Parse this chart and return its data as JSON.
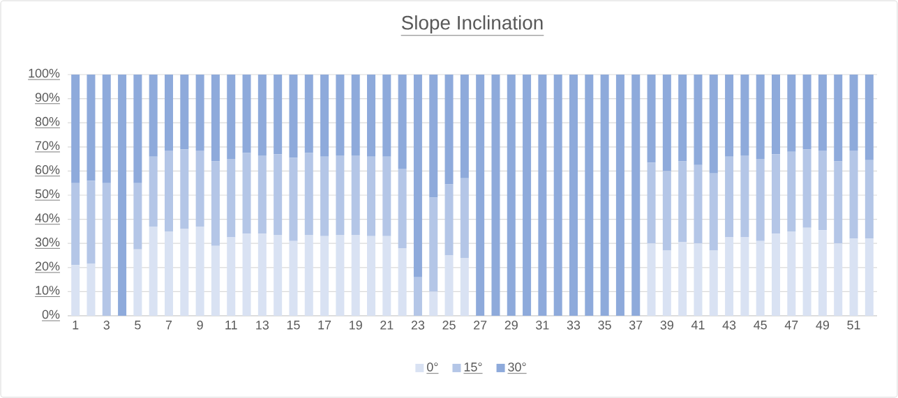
{
  "chart_data": {
    "type": "bar",
    "stacked": true,
    "title": "Slope Inclination",
    "categories": [
      "1",
      null,
      "3",
      null,
      "5",
      null,
      "7",
      null,
      "9",
      null,
      "11",
      null,
      "13",
      null,
      "15",
      null,
      "17",
      null,
      "19",
      null,
      "21",
      null,
      "23",
      null,
      "25",
      null,
      "27",
      null,
      "29",
      null,
      "31",
      null,
      "33",
      null,
      "35",
      null,
      "37",
      null,
      "39",
      null,
      "41",
      null,
      "43",
      null,
      "45",
      null,
      "47",
      null,
      "49",
      null,
      "51",
      null
    ],
    "series": [
      {
        "name": "0°",
        "color": "#d9e2f3",
        "values": [
          21,
          21.5,
          0,
          0,
          27.5,
          37,
          35,
          36,
          37,
          29,
          32.5,
          34,
          34,
          33.5,
          31,
          33.5,
          33,
          33.5,
          33.5,
          33,
          33,
          28,
          0,
          10,
          25,
          24,
          0,
          0,
          0,
          0,
          0,
          0,
          0,
          0,
          0,
          0,
          0,
          30,
          27,
          30.5,
          30,
          27,
          32.5,
          32.5,
          31,
          34,
          35,
          36.5,
          35.5,
          30,
          32,
          32
        ]
      },
      {
        "name": "15°",
        "color": "#b4c6e7",
        "values": [
          34,
          34.5,
          55,
          0,
          27.5,
          29,
          33.5,
          33,
          31.5,
          35,
          32.5,
          33.5,
          32.5,
          33.5,
          34.5,
          34,
          33,
          33,
          33,
          33,
          33,
          33,
          16,
          39,
          29.5,
          33,
          0,
          0,
          0,
          0,
          0,
          0,
          0,
          0,
          0,
          0,
          0,
          33.5,
          33,
          33.5,
          32.5,
          32,
          33.5,
          34,
          34,
          33,
          33,
          32.5,
          33,
          34,
          36.5,
          32.5
        ]
      },
      {
        "name": "30°",
        "color": "#8eaadb",
        "values": [
          45,
          44,
          45,
          100,
          45,
          34,
          31.5,
          31,
          31.5,
          36,
          35,
          32.5,
          33.5,
          33,
          34.5,
          32.5,
          34,
          33.5,
          33.5,
          34,
          34,
          39,
          84,
          51,
          45.5,
          43,
          100,
          100,
          100,
          100,
          100,
          100,
          100,
          100,
          100,
          100,
          100,
          36.5,
          40,
          36,
          37.5,
          41,
          34,
          33.5,
          35,
          33,
          32,
          31,
          31.5,
          36,
          31.5,
          35.5
        ]
      }
    ],
    "ylim": [
      0,
      100
    ],
    "yticks": [
      {
        "value": 0,
        "label": "0%"
      },
      {
        "value": 10,
        "label": "10%"
      },
      {
        "value": 20,
        "label": "20%"
      },
      {
        "value": 30,
        "label": "30%"
      },
      {
        "value": 40,
        "label": "40%"
      },
      {
        "value": 50,
        "label": "50%"
      },
      {
        "value": 60,
        "label": "60%"
      },
      {
        "value": 70,
        "label": "70%"
      },
      {
        "value": 80,
        "label": "80%"
      },
      {
        "value": 90,
        "label": "90%"
      },
      {
        "value": 100,
        "label": "100%"
      }
    ],
    "grid": "y",
    "legend": "bottom"
  }
}
